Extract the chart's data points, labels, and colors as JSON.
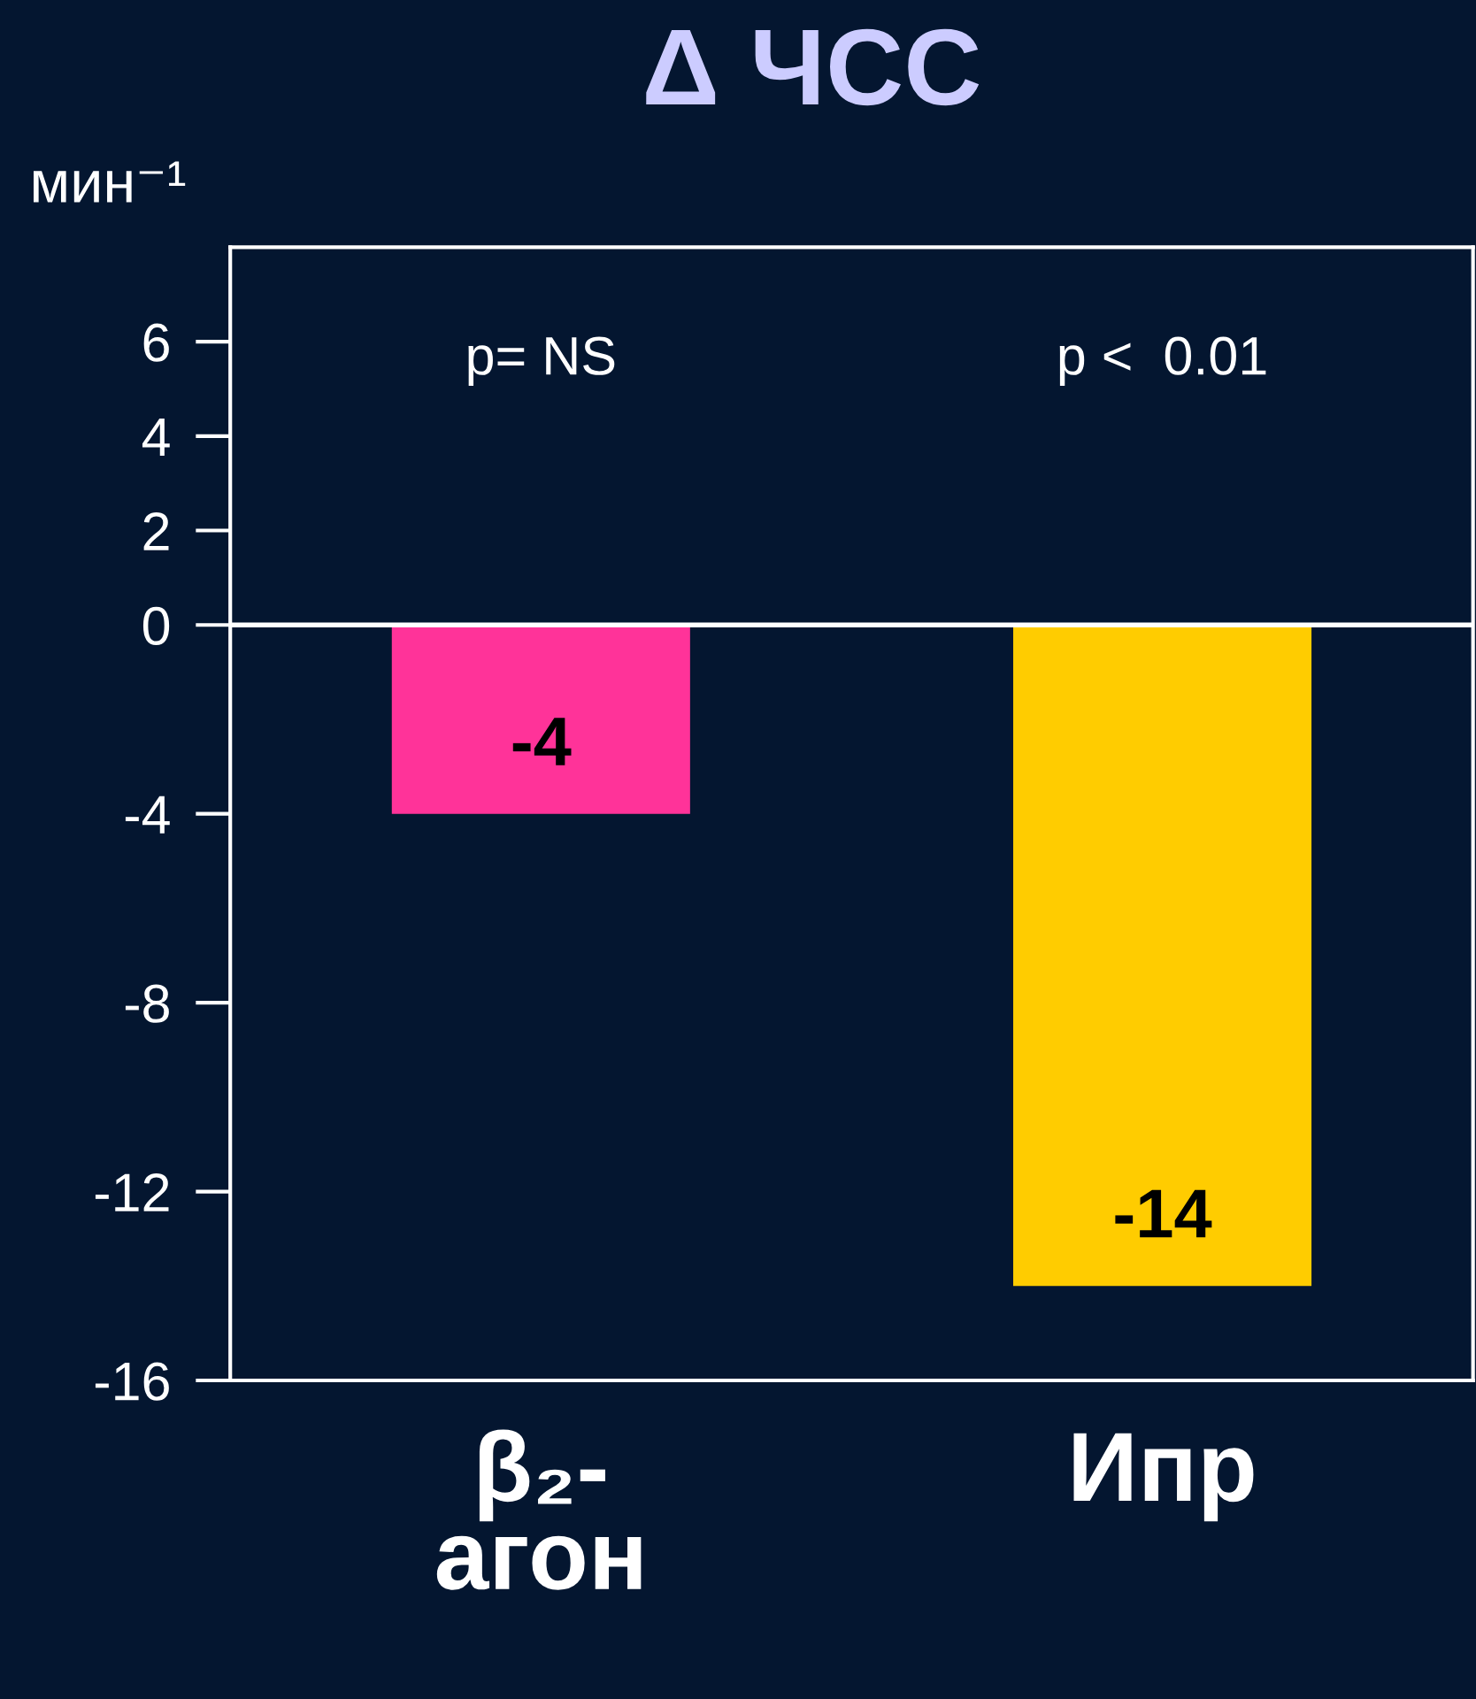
{
  "chart_data": {
    "type": "bar",
    "title": "Δ ЧСС",
    "ylabel": "мин⁻¹",
    "categories": [
      "β₂-\nагон",
      "Ипр"
    ],
    "values": [
      -4,
      -14
    ],
    "colors": [
      "#ff3399",
      "#ffcc00"
    ],
    "ylim": [
      -16,
      8
    ],
    "yticks": [
      6,
      4,
      2,
      0,
      -4,
      -8,
      -12,
      -16
    ],
    "data_labels": true,
    "legend": false,
    "ref_lines": [
      {
        "axis": "y",
        "value": 0,
        "color": "#ffffff",
        "line_style": "solid"
      }
    ],
    "annotations": [
      "p= NS",
      "p <  0.01"
    ]
  }
}
